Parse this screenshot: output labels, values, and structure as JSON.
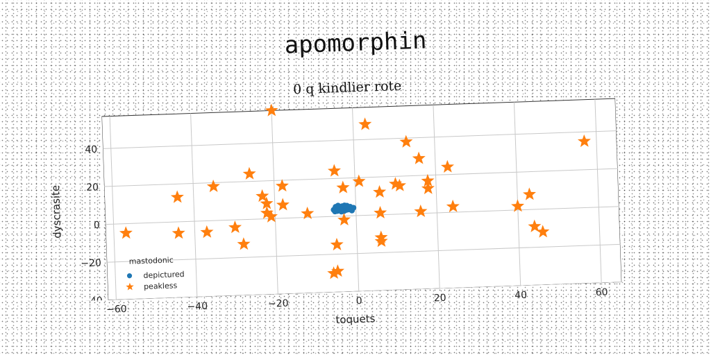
{
  "figure": {
    "title": "apomorphin"
  },
  "chart_data": {
    "type": "scatter",
    "title": "0 q kindlier rote",
    "xlabel": "toquets",
    "ylabel": "dyscrasite",
    "xlim": [
      -62,
      65
    ],
    "ylim": [
      -40,
      57
    ],
    "xticks": [
      -60,
      -40,
      -20,
      0,
      20,
      40,
      60
    ],
    "yticks": [
      -40,
      -20,
      0,
      20,
      40
    ],
    "grid": true,
    "legend": {
      "title": "mastodonic",
      "position": "lower-left"
    },
    "colors": {
      "depictured": "#1f77b4",
      "peakless": "#ff7f0e"
    },
    "series": [
      {
        "name": "depictured",
        "marker": "circle",
        "points": [
          [
            -5.5,
            3.5
          ],
          [
            -5,
            5
          ],
          [
            -4.6,
            2.8
          ],
          [
            -4.2,
            4.4
          ],
          [
            -3.8,
            3
          ],
          [
            -3.4,
            5.2
          ],
          [
            -3,
            2.6
          ],
          [
            -2.6,
            4
          ],
          [
            -2.2,
            5.4
          ],
          [
            -1.8,
            3.4
          ],
          [
            -1.4,
            4.8
          ],
          [
            -1,
            2.8
          ],
          [
            -0.6,
            4.2
          ],
          [
            -4.8,
            4
          ],
          [
            -4,
            3.6
          ],
          [
            -3.2,
            4.2
          ],
          [
            -2.4,
            3.2
          ],
          [
            -1.6,
            4.4
          ],
          [
            -5.2,
            2.6
          ],
          [
            -2,
            4
          ],
          [
            -1.2,
            3.8
          ],
          [
            -3.6,
            2.4
          ],
          [
            -4.4,
            5.6
          ],
          [
            -2.8,
            5.6
          ]
        ]
      },
      {
        "name": "peakless",
        "marker": "star",
        "points": [
          [
            -20,
            57
          ],
          [
            3,
            48
          ],
          [
            -26,
            24
          ],
          [
            -5,
            24
          ],
          [
            -35,
            18
          ],
          [
            -44,
            13
          ],
          [
            -23,
            12
          ],
          [
            -18,
            17
          ],
          [
            -22,
            8
          ],
          [
            -18,
            7
          ],
          [
            -22,
            3
          ],
          [
            -21,
            1
          ],
          [
            -12,
            2
          ],
          [
            -3,
            15
          ],
          [
            1,
            18
          ],
          [
            6,
            12
          ],
          [
            10,
            16
          ],
          [
            11,
            15
          ],
          [
            13,
            38
          ],
          [
            16,
            29
          ],
          [
            18,
            17
          ],
          [
            18,
            13
          ],
          [
            23,
            24
          ],
          [
            57,
            35
          ],
          [
            -57,
            -5
          ],
          [
            -44,
            -6
          ],
          [
            -37,
            -6
          ],
          [
            -30,
            -4
          ],
          [
            -28,
            -13
          ],
          [
            -3,
            -2
          ],
          [
            6,
            1
          ],
          [
            16,
            1
          ],
          [
            24,
            3
          ],
          [
            40,
            2
          ],
          [
            43,
            8
          ],
          [
            -5,
            -15
          ],
          [
            6,
            -12
          ],
          [
            6,
            -14
          ],
          [
            44,
            -9
          ],
          [
            46,
            -12
          ],
          [
            -5,
            -29
          ],
          [
            -6,
            -30
          ]
        ]
      }
    ]
  }
}
